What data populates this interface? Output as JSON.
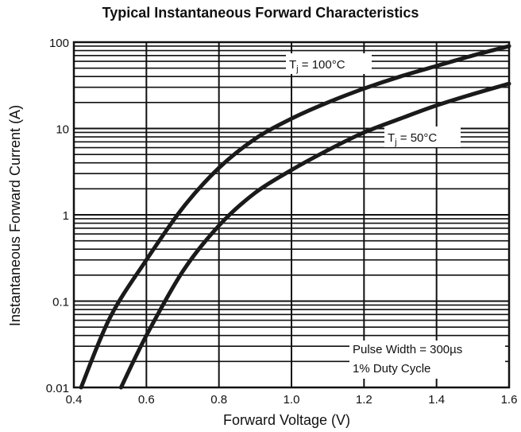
{
  "chart_data": {
    "type": "line",
    "title": "Typical Instantaneous Forward Characteristics",
    "xlabel": "Forward Voltage (V)",
    "ylabel": "Instantaneous Forward Current (A)",
    "xlim": [
      0.4,
      1.6
    ],
    "ylim": [
      0.01,
      100
    ],
    "yscale": "log",
    "grid": true,
    "x_ticks": [
      0.4,
      0.6,
      0.8,
      1.0,
      1.2,
      1.4,
      1.6
    ],
    "x_tick_labels": [
      "0.4",
      "0.6",
      "0.8",
      "1.0",
      "1.2",
      "1.4",
      "1.6"
    ],
    "y_ticks": [
      0.01,
      0.1,
      1,
      10,
      100
    ],
    "y_tick_labels": [
      "0.01",
      "0.1",
      "1",
      "10",
      "100"
    ],
    "series": [
      {
        "label_main": "T",
        "label_sub": "j",
        "label_rest": " = 100°C",
        "x": [
          0.42,
          0.5,
          0.6,
          0.7,
          0.8,
          0.9,
          1.0,
          1.1,
          1.2,
          1.3,
          1.4,
          1.5,
          1.6
        ],
        "y": [
          0.01,
          0.065,
          0.3,
          1.2,
          3.5,
          7.6,
          13,
          20,
          29,
          40,
          53,
          70,
          90
        ]
      },
      {
        "label_main": "T",
        "label_sub": "j",
        "label_rest": " = 50°C",
        "x": [
          0.53,
          0.6,
          0.7,
          0.8,
          0.9,
          1.0,
          1.1,
          1.2,
          1.3,
          1.4,
          1.5,
          1.6
        ],
        "y": [
          0.01,
          0.04,
          0.22,
          0.75,
          1.8,
          3.3,
          5.6,
          9,
          13,
          18.5,
          25,
          33
        ]
      }
    ],
    "annotations": [
      "Pulse Width = 300µs",
      "1% Duty Cycle"
    ]
  }
}
